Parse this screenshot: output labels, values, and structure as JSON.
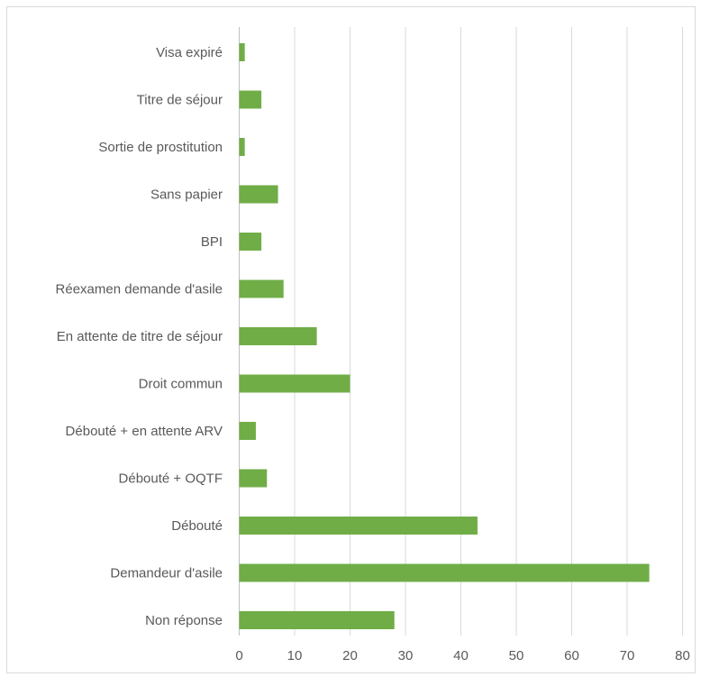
{
  "colors": {
    "bar": "#70ad47",
    "grid": "#d9d9d9",
    "axis": "#bfbfbf",
    "text": "#595959",
    "border": "#d9d9d9"
  },
  "chart_data": {
    "type": "bar",
    "orientation": "horizontal",
    "categories": [
      "Visa expiré",
      "Titre de séjour",
      "Sortie de prostitution",
      "Sans papier",
      "BPI",
      "Réexamen demande d'asile",
      "En attente de titre de séjour",
      "Droit commun",
      "Débouté + en attente ARV",
      "Débouté + OQTF",
      "Débouté",
      "Demandeur d'asile",
      "Non réponse"
    ],
    "values": [
      1,
      4,
      1,
      7,
      4,
      8,
      14,
      20,
      3,
      5,
      43,
      74,
      28
    ],
    "xlim": [
      0,
      80
    ],
    "x_ticks": [
      "0",
      "10",
      "20",
      "30",
      "40",
      "50",
      "60",
      "70",
      "80"
    ],
    "grid": true,
    "legend": "none"
  }
}
